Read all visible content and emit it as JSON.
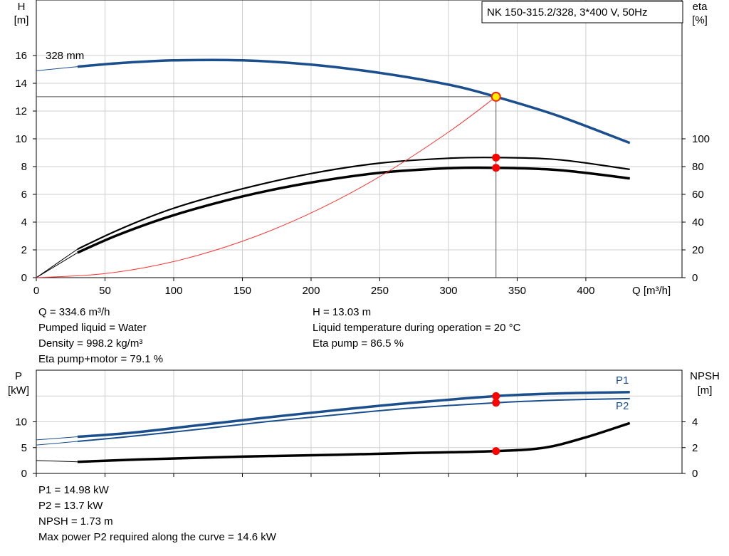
{
  "chart_data": [
    {
      "type": "line",
      "title": "NK 150-315.2/328, 3*400 V, 50Hz",
      "xlabel": "Q [m³/h]",
      "ylabel": [
        "H",
        "[m]"
      ],
      "ylabel_right": [
        "eta",
        "[%]"
      ],
      "xlim": [
        0,
        470
      ],
      "ylim": [
        0,
        20
      ],
      "ylim_right": [
        0,
        200
      ],
      "x_ticks": [
        0,
        50,
        100,
        150,
        200,
        250,
        300,
        350,
        400
      ],
      "y_ticks": [
        0,
        2,
        4,
        6,
        8,
        10,
        12,
        14,
        16
      ],
      "y_ticks_right": [
        0,
        20,
        40,
        60,
        80,
        100
      ],
      "annotation": "328 mm",
      "grid": true,
      "series": [
        {
          "key": "H",
          "axis": "left",
          "color": "#1a4e8c",
          "x": [
            0,
            30,
            60,
            100,
            150,
            200,
            250,
            300,
            334.6,
            380,
            432
          ],
          "y": [
            14.9,
            15.2,
            15.45,
            15.65,
            15.65,
            15.35,
            14.75,
            13.9,
            13.03,
            11.65,
            9.7
          ]
        },
        {
          "key": "Eta pump",
          "axis": "right",
          "color": "#000000",
          "x": [
            0,
            30,
            60,
            100,
            150,
            200,
            250,
            300,
            334.6,
            380,
            432
          ],
          "y": [
            0,
            20.5,
            34.5,
            50,
            64,
            75,
            82.5,
            86,
            86.5,
            85,
            78
          ]
        },
        {
          "key": "Eta pump+motor",
          "axis": "right",
          "color": "#000000",
          "x": [
            0,
            30,
            60,
            100,
            150,
            200,
            250,
            300,
            334.6,
            380,
            432
          ],
          "y": [
            0,
            18,
            31,
            45,
            58.5,
            68.5,
            75.5,
            78.8,
            79.1,
            77.5,
            71.5
          ]
        },
        {
          "key": "System curve",
          "axis": "left",
          "color": "#ff3333",
          "x": [
            0,
            50,
            100,
            150,
            200,
            250,
            300,
            334.6
          ],
          "y": [
            0,
            0.29,
            1.16,
            2.62,
            4.66,
            7.28,
            10.48,
            13.03
          ]
        }
      ],
      "operating_point": {
        "Q": 334.6,
        "H": 13.03,
        "eta_pump": 86.5,
        "eta_total": 79.1
      }
    },
    {
      "type": "line",
      "xlabel": "",
      "ylabel": [
        "P",
        "[kW]"
      ],
      "ylabel_right": [
        "NPSH",
        "[m]"
      ],
      "xlim": [
        0,
        470
      ],
      "ylim": [
        0,
        20
      ],
      "ylim_right": [
        0,
        8
      ],
      "y_ticks": [
        0,
        5,
        10
      ],
      "y_ticks_right": [
        0,
        2,
        4
      ],
      "grid": true,
      "series": [
        {
          "name": "P1",
          "axis": "left",
          "color": "#1a4e8c",
          "x": [
            0,
            30,
            70,
            120,
            170,
            220,
            270,
            334.6,
            380,
            432
          ],
          "y": [
            6.5,
            7.1,
            7.9,
            9.4,
            10.9,
            12.3,
            13.6,
            14.98,
            15.5,
            15.75
          ]
        },
        {
          "name": "P2",
          "axis": "left",
          "color": "#1a4e8c",
          "x": [
            0,
            30,
            70,
            120,
            170,
            220,
            270,
            334.6,
            380,
            432
          ],
          "y": [
            5.5,
            6.2,
            7.2,
            8.6,
            10.1,
            11.4,
            12.6,
            13.7,
            14.2,
            14.5
          ]
        },
        {
          "key": "NPSH",
          "axis": "right",
          "color": "#000000",
          "x": [
            0,
            30,
            80,
            150,
            220,
            280,
            334.6,
            370,
            400,
            432
          ],
          "y": [
            1.0,
            0.9,
            1.1,
            1.3,
            1.45,
            1.6,
            1.73,
            2.0,
            2.8,
            3.9
          ]
        }
      ],
      "operating_point": {
        "Q": 334.6,
        "P1": 14.98,
        "P2": 13.7,
        "NPSH": 1.73
      }
    }
  ],
  "info_top_left": [
    "Q = 334.6 m³/h",
    "Pumped liquid = Water",
    "Density = 998.2 kg/m³",
    "Eta pump+motor = 79.1 %"
  ],
  "info_top_right": [
    "H = 13.03 m",
    "Liquid temperature during operation = 20 °C",
    "Eta pump = 86.5 %"
  ],
  "info_bottom": [
    "P1 = 14.98 kW",
    "P2 = 13.7 kW",
    "NPSH = 1.73 m",
    "Max power P2 required along the curve = 14.6 kW"
  ]
}
